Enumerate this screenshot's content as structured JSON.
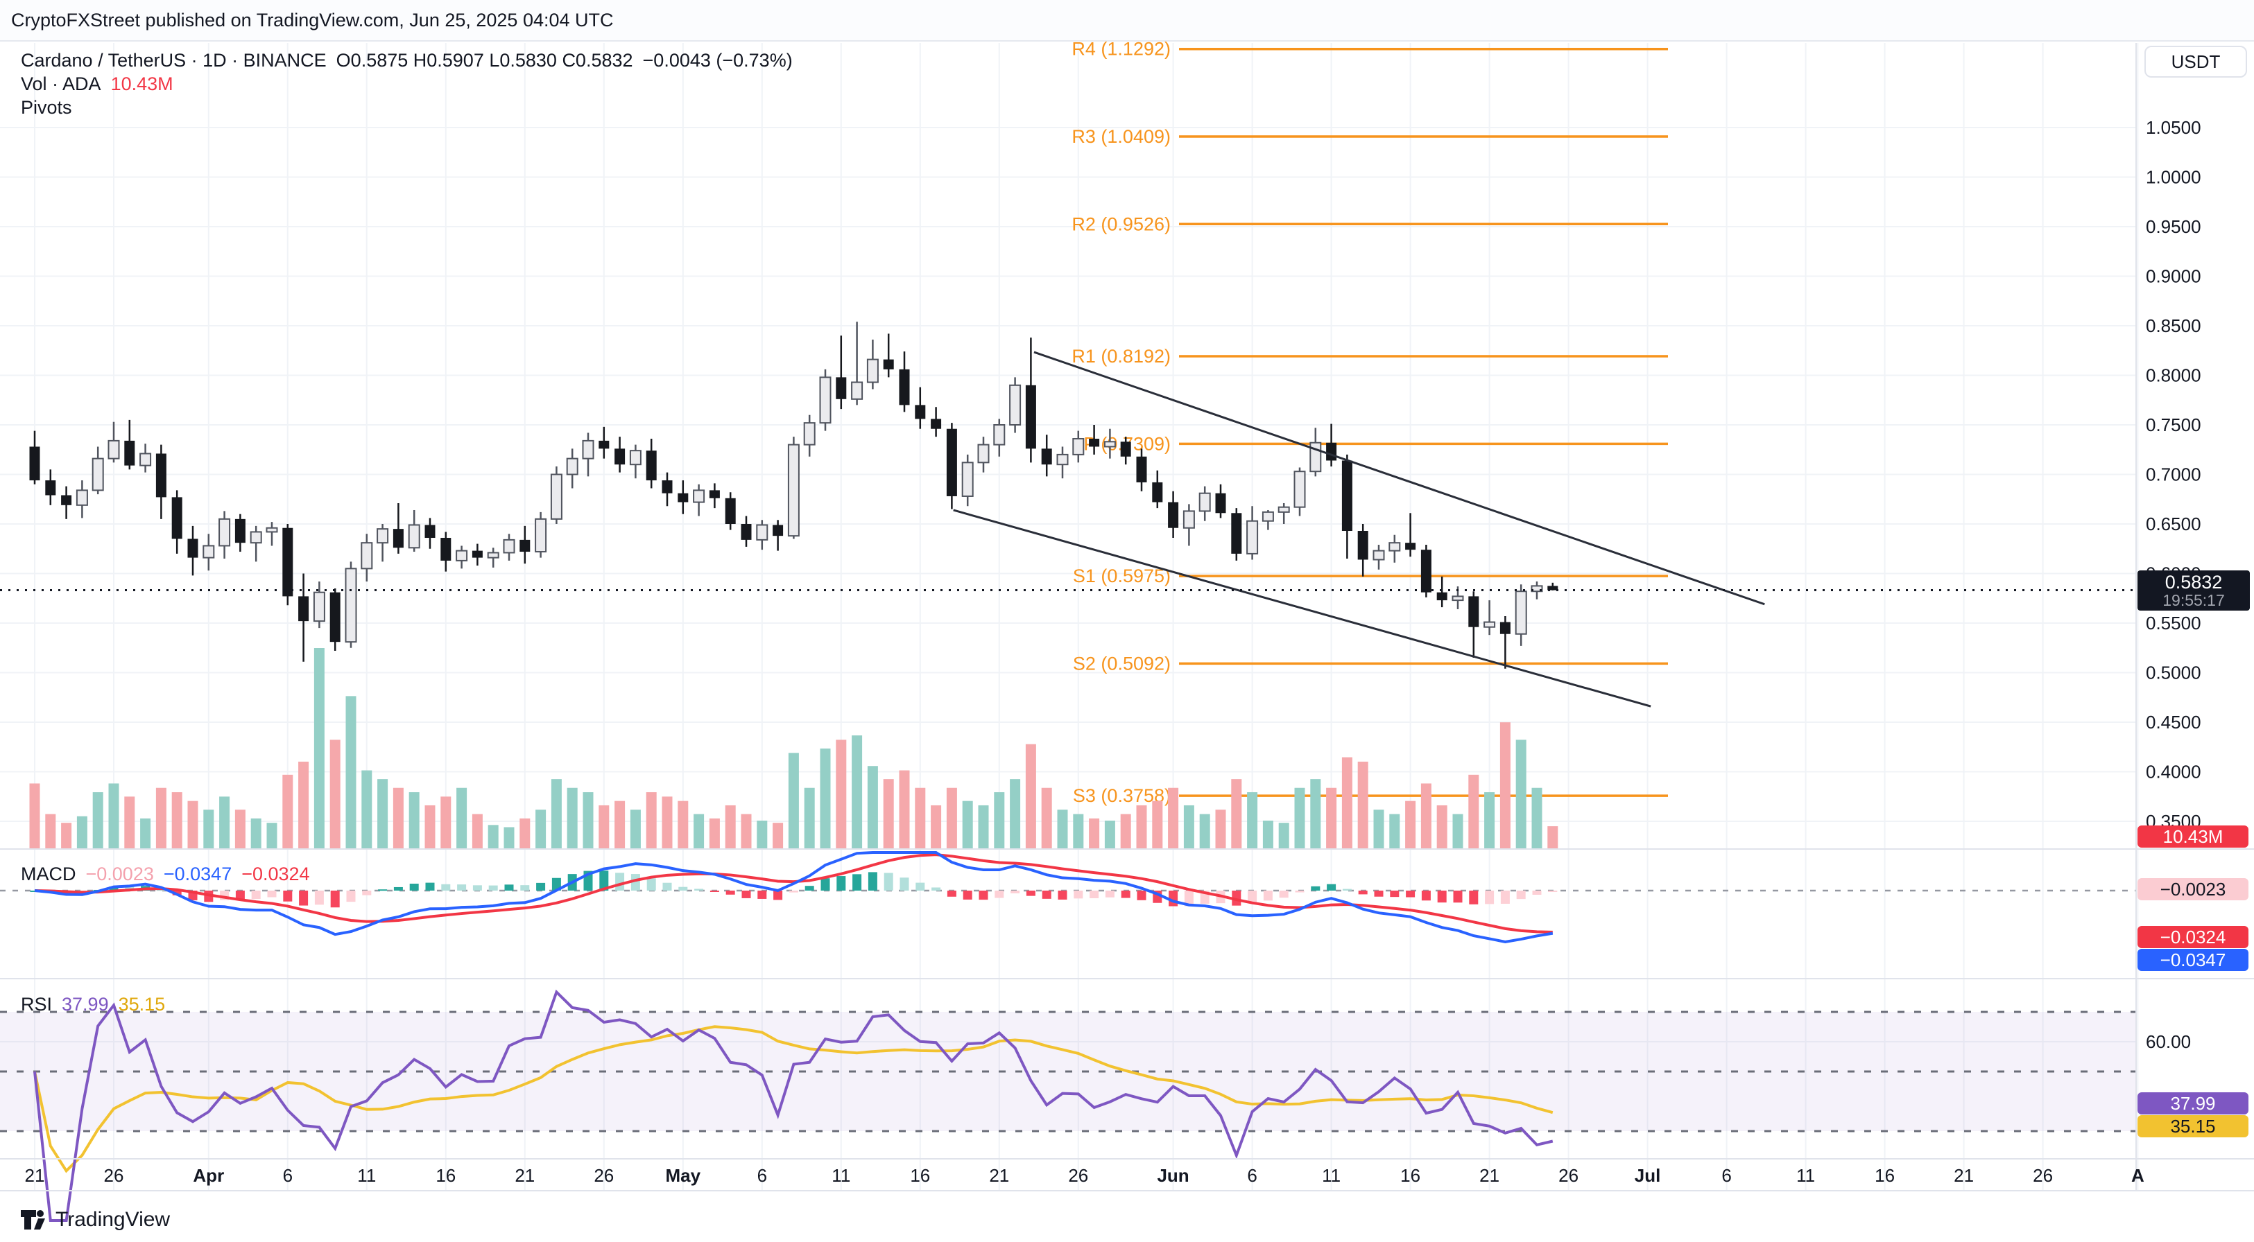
{
  "attribution": "CryptoFXStreet published on TradingView.com, Jun 25, 2025 04:04 UTC",
  "header": {
    "market": "Cardano / TetherUS · 1D · BINANCE",
    "ohlc": "O0.5875  H0.5907  L0.5830  C0.5832",
    "change": "−0.0043 (−0.73%)"
  },
  "volume_row": {
    "label": "Vol · ADA",
    "value": "10.43M"
  },
  "pivots_row": {
    "label": "Pivots"
  },
  "price_axis": {
    "currency": "USDT",
    "ticks": [
      "1.0500",
      "1.0000",
      "0.9500",
      "0.9000",
      "0.8500",
      "0.8000",
      "0.7500",
      "0.7000",
      "0.6500",
      "0.6000",
      "0.5500",
      "0.5000",
      "0.4500",
      "0.4000",
      "0.3500"
    ],
    "last_price": "0.5832",
    "countdown": "19:55:17",
    "volume_badge": "10.43M"
  },
  "macd_pane": {
    "label": "MACD",
    "histogram": "−0.0023",
    "macd": "−0.0347",
    "signal": "−0.0324"
  },
  "rsi_pane": {
    "label": "RSI",
    "value": "37.99",
    "ma": "35.15",
    "axis_tick": "60.00"
  },
  "branding": {
    "name": "TradingView"
  },
  "chart_data": {
    "type": "candlestick",
    "symbol": "ADAUSDT",
    "exchange": "BINANCE",
    "interval": "1D",
    "start_date": "2025-03-21",
    "end_date": "2025-06-25",
    "price_axis_range": [
      0.325,
      1.19
    ],
    "grid": true,
    "pivot_levels": [
      {
        "name": "R4",
        "label": "R4 (1.1292)",
        "price": 1.1292
      },
      {
        "name": "R3",
        "label": "R3 (1.0409)",
        "price": 1.0409
      },
      {
        "name": "R2",
        "label": "R2 (0.9526)",
        "price": 0.9526
      },
      {
        "name": "R1",
        "label": "R1 (0.8192)",
        "price": 0.8192
      },
      {
        "name": "P",
        "label": "P (0.7309)",
        "price": 0.7309
      },
      {
        "name": "S1",
        "label": "S1 (0.5975)",
        "price": 0.5975
      },
      {
        "name": "S2",
        "label": "S2 (0.5092)",
        "price": 0.5092
      },
      {
        "name": "S3",
        "label": "S3 (0.3758)",
        "price": 0.3758
      }
    ],
    "current_price": 0.5832,
    "ohlc": [
      [
        0.728,
        0.744,
        0.69,
        0.694
      ],
      [
        0.694,
        0.705,
        0.669,
        0.679
      ],
      [
        0.679,
        0.688,
        0.655,
        0.669
      ],
      [
        0.669,
        0.694,
        0.656,
        0.684
      ],
      [
        0.684,
        0.728,
        0.68,
        0.716
      ],
      [
        0.716,
        0.753,
        0.712,
        0.734
      ],
      [
        0.734,
        0.755,
        0.705,
        0.709
      ],
      [
        0.709,
        0.731,
        0.702,
        0.721
      ],
      [
        0.721,
        0.73,
        0.655,
        0.677
      ],
      [
        0.677,
        0.684,
        0.62,
        0.635
      ],
      [
        0.635,
        0.648,
        0.598,
        0.616
      ],
      [
        0.616,
        0.64,
        0.603,
        0.628
      ],
      [
        0.628,
        0.663,
        0.615,
        0.655
      ],
      [
        0.655,
        0.66,
        0.622,
        0.631
      ],
      [
        0.631,
        0.648,
        0.612,
        0.642
      ],
      [
        0.642,
        0.652,
        0.628,
        0.646
      ],
      [
        0.646,
        0.65,
        0.568,
        0.577
      ],
      [
        0.577,
        0.6,
        0.511,
        0.552
      ],
      [
        0.552,
        0.592,
        0.545,
        0.581
      ],
      [
        0.581,
        0.585,
        0.522,
        0.531
      ],
      [
        0.531,
        0.612,
        0.525,
        0.605
      ],
      [
        0.605,
        0.64,
        0.592,
        0.631
      ],
      [
        0.631,
        0.65,
        0.612,
        0.645
      ],
      [
        0.645,
        0.671,
        0.62,
        0.626
      ],
      [
        0.626,
        0.664,
        0.622,
        0.649
      ],
      [
        0.649,
        0.656,
        0.625,
        0.636
      ],
      [
        0.636,
        0.642,
        0.602,
        0.613
      ],
      [
        0.613,
        0.628,
        0.605,
        0.623
      ],
      [
        0.623,
        0.63,
        0.608,
        0.616
      ],
      [
        0.616,
        0.626,
        0.606,
        0.621
      ],
      [
        0.621,
        0.64,
        0.613,
        0.634
      ],
      [
        0.634,
        0.648,
        0.61,
        0.622
      ],
      [
        0.622,
        0.662,
        0.616,
        0.655
      ],
      [
        0.655,
        0.708,
        0.65,
        0.7
      ],
      [
        0.7,
        0.726,
        0.686,
        0.716
      ],
      [
        0.716,
        0.742,
        0.698,
        0.734
      ],
      [
        0.734,
        0.748,
        0.716,
        0.726
      ],
      [
        0.726,
        0.738,
        0.702,
        0.71
      ],
      [
        0.71,
        0.73,
        0.696,
        0.724
      ],
      [
        0.724,
        0.736,
        0.686,
        0.694
      ],
      [
        0.694,
        0.702,
        0.668,
        0.681
      ],
      [
        0.681,
        0.694,
        0.66,
        0.672
      ],
      [
        0.672,
        0.69,
        0.658,
        0.684
      ],
      [
        0.684,
        0.691,
        0.666,
        0.676
      ],
      [
        0.676,
        0.682,
        0.644,
        0.65
      ],
      [
        0.65,
        0.658,
        0.627,
        0.634
      ],
      [
        0.634,
        0.654,
        0.624,
        0.649
      ],
      [
        0.649,
        0.654,
        0.623,
        0.638
      ],
      [
        0.638,
        0.738,
        0.635,
        0.73
      ],
      [
        0.73,
        0.76,
        0.718,
        0.752
      ],
      [
        0.752,
        0.806,
        0.744,
        0.798
      ],
      [
        0.798,
        0.84,
        0.766,
        0.776
      ],
      [
        0.776,
        0.854,
        0.77,
        0.793
      ],
      [
        0.793,
        0.836,
        0.786,
        0.816
      ],
      [
        0.816,
        0.842,
        0.798,
        0.806
      ],
      [
        0.806,
        0.824,
        0.763,
        0.77
      ],
      [
        0.77,
        0.788,
        0.746,
        0.756
      ],
      [
        0.756,
        0.768,
        0.738,
        0.746
      ],
      [
        0.746,
        0.752,
        0.665,
        0.678
      ],
      [
        0.678,
        0.72,
        0.668,
        0.712
      ],
      [
        0.712,
        0.738,
        0.702,
        0.73
      ],
      [
        0.73,
        0.756,
        0.718,
        0.75
      ],
      [
        0.75,
        0.798,
        0.742,
        0.79
      ],
      [
        0.79,
        0.838,
        0.712,
        0.726
      ],
      [
        0.726,
        0.74,
        0.698,
        0.71
      ],
      [
        0.71,
        0.728,
        0.696,
        0.72
      ],
      [
        0.72,
        0.744,
        0.712,
        0.736
      ],
      [
        0.736,
        0.75,
        0.72,
        0.728
      ],
      [
        0.728,
        0.746,
        0.716,
        0.733
      ],
      [
        0.733,
        0.738,
        0.71,
        0.718
      ],
      [
        0.718,
        0.726,
        0.683,
        0.692
      ],
      [
        0.692,
        0.704,
        0.666,
        0.672
      ],
      [
        0.672,
        0.683,
        0.636,
        0.646
      ],
      [
        0.646,
        0.67,
        0.628,
        0.663
      ],
      [
        0.663,
        0.688,
        0.653,
        0.681
      ],
      [
        0.681,
        0.69,
        0.656,
        0.661
      ],
      [
        0.661,
        0.666,
        0.613,
        0.62
      ],
      [
        0.62,
        0.668,
        0.614,
        0.653
      ],
      [
        0.653,
        0.664,
        0.644,
        0.662
      ],
      [
        0.662,
        0.671,
        0.65,
        0.667
      ],
      [
        0.667,
        0.707,
        0.658,
        0.703
      ],
      [
        0.703,
        0.747,
        0.698,
        0.732
      ],
      [
        0.732,
        0.751,
        0.708,
        0.714
      ],
      [
        0.714,
        0.72,
        0.615,
        0.643
      ],
      [
        0.643,
        0.65,
        0.597,
        0.614
      ],
      [
        0.614,
        0.629,
        0.604,
        0.623
      ],
      [
        0.623,
        0.639,
        0.611,
        0.631
      ],
      [
        0.631,
        0.661,
        0.617,
        0.624
      ],
      [
        0.624,
        0.629,
        0.576,
        0.581
      ],
      [
        0.581,
        0.597,
        0.566,
        0.573
      ],
      [
        0.573,
        0.587,
        0.564,
        0.577
      ],
      [
        0.577,
        0.582,
        0.515,
        0.546
      ],
      [
        0.546,
        0.573,
        0.538,
        0.551
      ],
      [
        0.551,
        0.557,
        0.504,
        0.539
      ],
      [
        0.539,
        0.589,
        0.527,
        0.582
      ],
      [
        0.582,
        0.592,
        0.574,
        0.5875
      ],
      [
        0.5875,
        0.5907,
        0.583,
        0.5832
      ]
    ],
    "volumes_m": [
      30,
      16,
      12,
      15,
      26,
      30,
      24,
      14,
      28,
      26,
      22,
      18,
      24,
      18,
      14,
      12,
      34,
      40,
      92,
      50,
      70,
      36,
      32,
      28,
      26,
      20,
      24,
      28,
      16,
      11,
      10,
      14,
      18,
      32,
      28,
      26,
      20,
      22,
      18,
      26,
      24,
      22,
      16,
      14,
      20,
      16,
      13,
      12,
      44,
      28,
      46,
      50,
      52,
      38,
      32,
      36,
      28,
      20,
      28,
      22,
      20,
      26,
      32,
      48,
      28,
      18,
      16,
      14,
      13,
      16,
      20,
      22,
      28,
      20,
      16,
      18,
      32,
      26,
      13,
      12,
      28,
      32,
      28,
      42,
      40,
      18,
      16,
      22,
      30,
      20,
      16,
      34,
      26,
      58,
      50,
      28,
      10.43
    ],
    "last_volume_label": "10.43M",
    "trendlines": {
      "upper": {
        "from": {
          "day": 63.2,
          "price": 0.8234
        },
        "to": {
          "day": 109.4,
          "price": 0.569
        }
      },
      "lower": {
        "from": {
          "day": 58.1,
          "price": 0.664
        },
        "to": {
          "day": 102.2,
          "price": 0.466
        }
      }
    },
    "indicators": {
      "macd_params": [
        12,
        26,
        9
      ],
      "macd_last": {
        "histogram": -0.0023,
        "macd": -0.0347,
        "signal": -0.0324
      },
      "rsi_period": 14,
      "rsi_ma_period": 14,
      "rsi_last": 37.99,
      "rsi_ma_last": 35.15,
      "rsi_bands": [
        70,
        50,
        30
      ]
    },
    "time_axis": [
      {
        "t": "21",
        "d": 0
      },
      {
        "t": "26",
        "d": 5
      },
      {
        "t": "Apr",
        "d": 11,
        "b": 1
      },
      {
        "t": "6",
        "d": 16
      },
      {
        "t": "11",
        "d": 21
      },
      {
        "t": "16",
        "d": 26
      },
      {
        "t": "21",
        "d": 31
      },
      {
        "t": "26",
        "d": 36
      },
      {
        "t": "May",
        "d": 41,
        "b": 1
      },
      {
        "t": "6",
        "d": 46
      },
      {
        "t": "11",
        "d": 51
      },
      {
        "t": "16",
        "d": 56
      },
      {
        "t": "21",
        "d": 61
      },
      {
        "t": "26",
        "d": 66
      },
      {
        "t": "Jun",
        "d": 72,
        "b": 1
      },
      {
        "t": "6",
        "d": 77
      },
      {
        "t": "11",
        "d": 82
      },
      {
        "t": "16",
        "d": 87
      },
      {
        "t": "21",
        "d": 92
      },
      {
        "t": "26",
        "d": 97
      },
      {
        "t": "Jul",
        "d": 102,
        "b": 1
      },
      {
        "t": "6",
        "d": 107
      },
      {
        "t": "11",
        "d": 112
      },
      {
        "t": "16",
        "d": 117
      },
      {
        "t": "21",
        "d": 122
      },
      {
        "t": "26",
        "d": 127
      },
      {
        "t": "A",
        "d": 133,
        "b": 1
      }
    ],
    "colors": {
      "up_body": "#ebebee",
      "up_border": "#50545e",
      "down_body": "#16181d",
      "vol_up": "#94cfc6",
      "vol_down": "#f5a8ab",
      "pivot": "#f7941d",
      "trendline": "#2a2e39",
      "macd_line": "#2962ff",
      "macd_signal": "#f23645",
      "hist_up": "#26a69a",
      "hist_up_fade": "#b2dfdb",
      "hist_down": "#f6465d",
      "hist_down_fade": "#fdd0d6",
      "rsi_line": "#7e57c2",
      "rsi_ma": "#f2c230",
      "rsi_band_fill": "#7e57c2",
      "grid": "#f0f3f7",
      "separator": "#e0e3eb",
      "accent_red": "#f23645"
    }
  }
}
